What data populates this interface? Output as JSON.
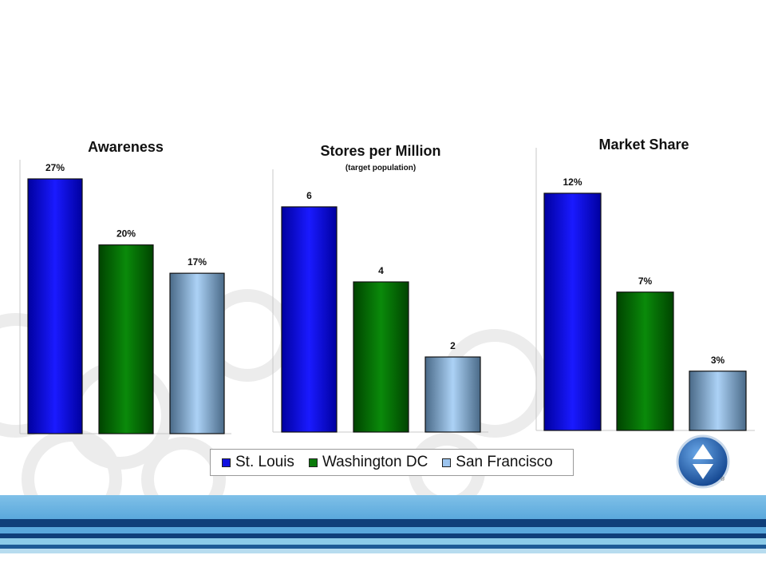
{
  "legend": {
    "items": [
      {
        "label": "St. Louis",
        "color": "#1010e0"
      },
      {
        "label": "Washington DC",
        "color": "#0a7a0a"
      },
      {
        "label": "San Francisco",
        "color": "#9cc4ee"
      }
    ]
  },
  "logo": {
    "icon": "up-down-arrows-icon",
    "registered": "®"
  },
  "chart_data": [
    {
      "type": "bar",
      "title": "Awareness",
      "subtitle": "",
      "categories": [
        "St. Louis",
        "Washington DC",
        "San Francisco"
      ],
      "values": [
        27,
        20,
        17
      ],
      "value_labels": [
        "27%",
        "20%",
        "17%"
      ],
      "ylim": [
        0,
        27
      ],
      "grid": false
    },
    {
      "type": "bar",
      "title": "Stores per Million",
      "subtitle": "(target population)",
      "categories": [
        "St. Louis",
        "Washington DC",
        "San Francisco"
      ],
      "values": [
        6,
        4,
        2
      ],
      "value_labels": [
        "6",
        "4",
        "2"
      ],
      "ylim": [
        0,
        6
      ],
      "grid": false
    },
    {
      "type": "bar",
      "title": "Market Share",
      "subtitle": "",
      "categories": [
        "St. Louis",
        "Washington DC",
        "San Francisco"
      ],
      "values": [
        12,
        7,
        3
      ],
      "value_labels": [
        "12%",
        "7%",
        "3%"
      ],
      "ylim": [
        0,
        12
      ],
      "grid": false
    }
  ]
}
